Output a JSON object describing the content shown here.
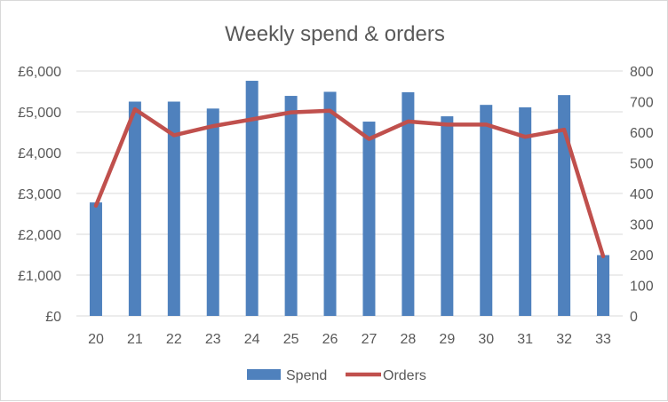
{
  "chart_data": {
    "type": "bar",
    "title": "Weekly spend & orders",
    "categories": [
      "20",
      "21",
      "22",
      "23",
      "24",
      "25",
      "26",
      "27",
      "28",
      "29",
      "30",
      "31",
      "32",
      "33"
    ],
    "series": [
      {
        "name": "Spend",
        "type": "bar",
        "axis": "left",
        "color": "#4f81bd",
        "values": [
          2780,
          5250,
          5250,
          5080,
          5760,
          5390,
          5490,
          4760,
          5480,
          4890,
          5170,
          5110,
          5410,
          1490
        ]
      },
      {
        "name": "Orders",
        "type": "line",
        "axis": "right",
        "color": "#c0504d",
        "values": [
          360,
          675,
          590,
          620,
          642,
          665,
          670,
          578,
          635,
          625,
          625,
          585,
          608,
          195
        ]
      }
    ],
    "y_left": {
      "ylim": [
        0,
        6000
      ],
      "ticks": [
        0,
        1000,
        2000,
        3000,
        4000,
        5000,
        6000
      ],
      "tick_labels": [
        "£0",
        "£1,000",
        "£2,000",
        "£3,000",
        "£4,000",
        "£5,000",
        "£6,000"
      ]
    },
    "y_right": {
      "ylim": [
        0,
        800
      ],
      "ticks": [
        0,
        100,
        200,
        300,
        400,
        500,
        600,
        700,
        800
      ],
      "tick_labels": [
        "0",
        "100",
        "200",
        "300",
        "400",
        "500",
        "600",
        "700",
        "800"
      ]
    },
    "grid": true,
    "legend_position": "bottom"
  }
}
